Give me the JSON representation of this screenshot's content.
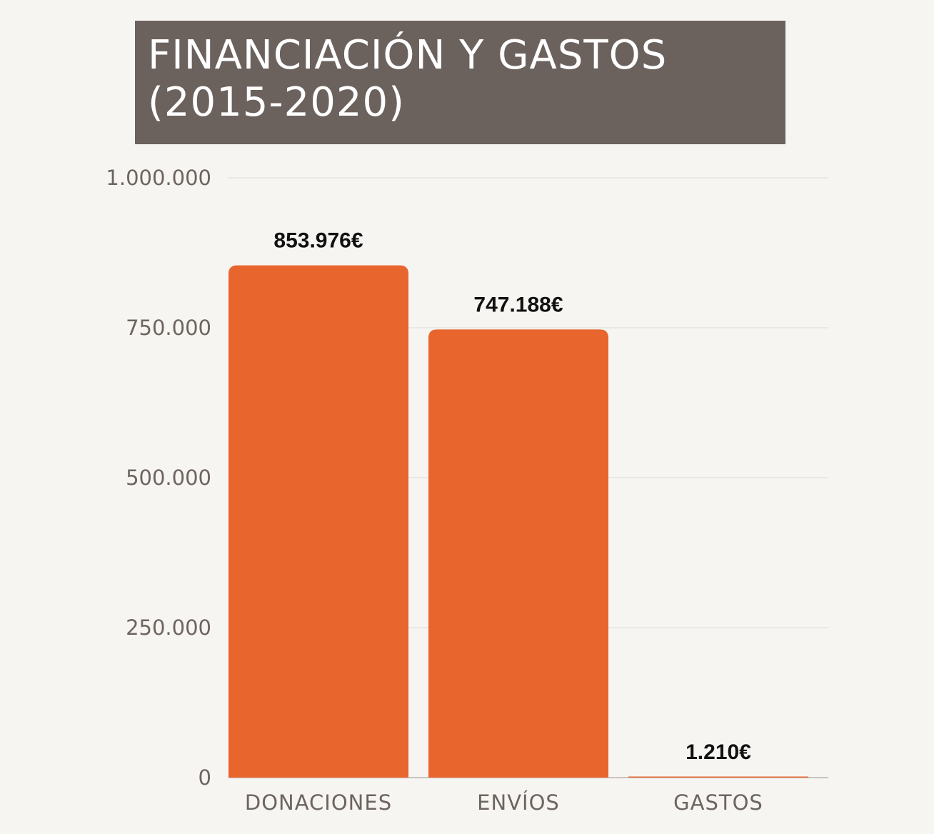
{
  "chart_data": {
    "type": "bar",
    "title": "FINANCIACIÓN Y GASTOS\n(2015-2020)",
    "categories": [
      "DONACIONES",
      "ENVÍOS",
      "GASTOS"
    ],
    "values": [
      853976,
      747188,
      1210
    ],
    "data_labels": [
      "853.976€",
      "747.188€",
      "1.210€"
    ],
    "ylim": [
      0,
      1000000
    ],
    "yticks": [
      0,
      250000,
      500000,
      750000,
      1000000
    ],
    "ytick_labels": [
      "0",
      "250.000",
      "500.000",
      "750.000",
      "1.000.000"
    ],
    "xlabel": "",
    "ylabel": "",
    "grid": true,
    "legend": "none",
    "bar_color": "#e8652e",
    "grid_color": "#dcdad5",
    "title_bg_color": "#6b615d"
  }
}
